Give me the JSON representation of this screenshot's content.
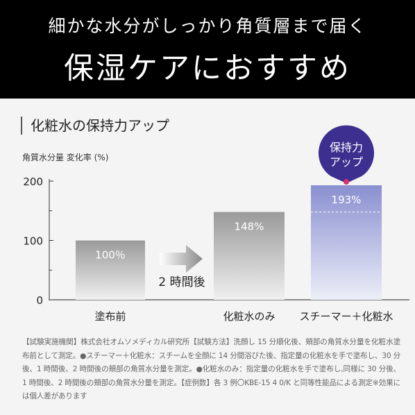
{
  "banner": {
    "subtitle": "細かな水分がしっかり角質層まで届く",
    "title": "保湿ケアにおすすめ"
  },
  "footnote": "【試験実施機関】株式会社オムソメディカル研究所【試験方法】洗顔し 15 分順化後、頬部の角質水分量を化粧水塗布前として測定。●スチーマー＋化粧水：スチームを全顔に 14 分間浴びた後、指定量の化粧水を手で塗布し、30 分後、1 時間後、2 時間後の頬部の角質水分量を測定。●化粧水のみ：指定量の化粧水を手で塗布し,同様に 30 分後、1 時間後、2 時間後の頬部の角質水分量を測定。【症例数】各 3 例〇KBE-15 4 0/K と同等性能品による測定※効果には個人差があります",
  "chart_data": {
    "type": "bar",
    "title": "化粧水の保持力アップ",
    "ylabel": "角質水分量 変化率 (%)",
    "ylim": [
      0,
      200
    ],
    "yticks": [
      0,
      100,
      200
    ],
    "categories": [
      "塗布前",
      "化粧水のみ",
      "スチーマー＋化粧水"
    ],
    "values": [
      100,
      148,
      193
    ],
    "value_labels": [
      "100％",
      "148%",
      "193%"
    ],
    "arrow_label": "2 時間後",
    "callout": {
      "line1": "保持力",
      "line2": "アップ"
    },
    "colors": {
      "bar_gray_top": "#9a9a9a",
      "bar_gray_bottom": "#f0f0f0",
      "bar_accent_top": "#8a8fd0",
      "bar_accent_bottom": "#eceef8",
      "callout": "#3c2f8f",
      "callout_dot": "#d6336c"
    }
  }
}
